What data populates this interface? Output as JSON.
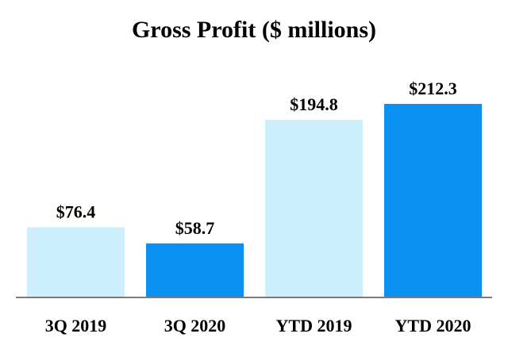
{
  "chart_data": {
    "type": "bar",
    "title": "Gross Profit ($ millions)",
    "xlabel": "",
    "ylabel": "",
    "ylim": [
      0,
      212.3
    ],
    "grid": false,
    "legend": "none",
    "categories": [
      "3Q 2019",
      "3Q 2020",
      "YTD 2019",
      "YTD 2020"
    ],
    "values": [
      76.4,
      58.7,
      194.8,
      212.3
    ],
    "data_labels": [
      "$76.4",
      "$58.7",
      "$194.8",
      "$212.3"
    ],
    "bar_colors": [
      "#cdeefc",
      "#0a90f2",
      "#cdeefc",
      "#0a90f2"
    ],
    "axis_color": "#7a7a7a"
  }
}
